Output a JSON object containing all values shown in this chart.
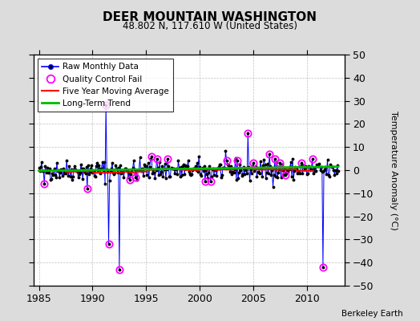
{
  "title": "DEER MOUNTAIN WASHINGTON",
  "subtitle": "48.802 N, 117.610 W (United States)",
  "ylabel": "Temperature Anomaly (°C)",
  "credit": "Berkeley Earth",
  "xlim": [
    1984.5,
    2013.5
  ],
  "ylim": [
    -50,
    50
  ],
  "yticks": [
    -50,
    -40,
    -30,
    -20,
    -10,
    0,
    10,
    20,
    30,
    40,
    50
  ],
  "xticks": [
    1985,
    1990,
    1995,
    2000,
    2005,
    2010
  ],
  "bg_color": "#dcdcdc",
  "plot_bg": "#ffffff",
  "grid_color": "#c0c0c0",
  "raw_color": "#0000ff",
  "qc_color": "#ff00ff",
  "ma_color": "#ff0000",
  "trend_color": "#00bb00",
  "raw_seed": 42,
  "extreme_vals": {
    "1991.25": 28,
    "1991.5": -32,
    "1992.5": -43,
    "1997.0": 5,
    "2000.5": -5,
    "2004.5": 16,
    "2011.5": -42,
    "1985.5": -6,
    "1989.5": -8,
    "1993.5": -4,
    "1994.0": -3,
    "1995.5": 6,
    "1996.0": 5,
    "2001.0": -5,
    "2002.5": 4,
    "2003.5": 4,
    "2005.0": 3,
    "2006.5": 7,
    "2007.0": 5,
    "2007.5": 3,
    "2008.0": -2,
    "2009.5": 3,
    "2010.5": 5
  }
}
